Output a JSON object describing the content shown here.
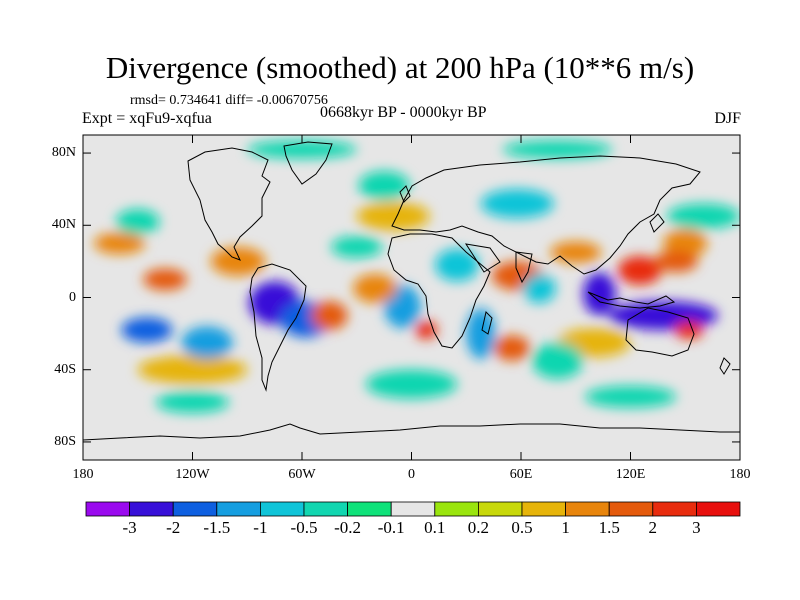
{
  "title": "Divergence (smoothed) at 200 hPa (10**6 m/s)",
  "stats_text": "rmsd= 0.734641  diff= -0.00670756",
  "experiment_text": "Expt = xqFu9-xqfua",
  "period_text": "0668kyr BP - 0000kyr BP",
  "season": "DJF",
  "chart_data": {
    "type": "heatmap",
    "title": "Divergence (smoothed) at 200 hPa (10**6 m/s)",
    "units": "10**6 m/s",
    "projection": "cylindrical equidistant",
    "x_range": [
      -180,
      180
    ],
    "y_range": [
      -90,
      90
    ],
    "y_ticks": [
      {
        "value": 80,
        "label": "80N"
      },
      {
        "value": 40,
        "label": "40N"
      },
      {
        "value": 0,
        "label": "0"
      },
      {
        "value": -40,
        "label": "40S"
      },
      {
        "value": -80,
        "label": "80S"
      }
    ],
    "x_ticks": [
      {
        "value": -180,
        "label": "180"
      },
      {
        "value": -120,
        "label": "120W"
      },
      {
        "value": -60,
        "label": "60W"
      },
      {
        "value": 0,
        "label": "0"
      },
      {
        "value": 60,
        "label": "60E"
      },
      {
        "value": 120,
        "label": "120E"
      },
      {
        "value": 180,
        "label": "180"
      }
    ],
    "colorbar": {
      "levels": [
        "-3",
        "-2",
        "-1.5",
        "-1",
        "-0.5",
        "-0.2",
        "-0.1",
        "0.1",
        "0.2",
        "0.5",
        "1",
        "1.5",
        "2",
        "3"
      ],
      "colors": [
        "#9a0aee",
        "#3810d8",
        "#0e5fe0",
        "#159ee0",
        "#10c4d8",
        "#11d6b0",
        "#0fe27a",
        "#e6e6e6",
        "#9ae50e",
        "#c8d80b",
        "#e6b40a",
        "#e8850c",
        "#e45a0c",
        "#e82c0e",
        "#e8100e"
      ]
    },
    "features": [
      {
        "lon": 138,
        "lat": -10,
        "value": -2.5,
        "rx": 30,
        "ry": 8
      },
      {
        "lon": 103,
        "lat": 2,
        "value": -3,
        "rx": 9,
        "ry": 12
      },
      {
        "lon": -75,
        "lat": -3,
        "value": -2.5,
        "rx": 14,
        "ry": 12
      },
      {
        "lon": -58,
        "lat": -12,
        "value": -2,
        "rx": 14,
        "ry": 10
      },
      {
        "lon": -145,
        "lat": -18,
        "value": -2,
        "rx": 14,
        "ry": 7
      },
      {
        "lon": -112,
        "lat": -25,
        "value": -1.5,
        "rx": 14,
        "ry": 9
      },
      {
        "lon": -5,
        "lat": -5,
        "value": -1.5,
        "rx": 10,
        "ry": 12
      },
      {
        "lon": 38,
        "lat": -20,
        "value": -1.5,
        "rx": 8,
        "ry": 14
      },
      {
        "lon": 70,
        "lat": 5,
        "value": -1,
        "rx": 9,
        "ry": 8
      },
      {
        "lon": 25,
        "lat": 18,
        "value": -1,
        "rx": 12,
        "ry": 9
      },
      {
        "lon": 58,
        "lat": 52,
        "value": -1,
        "rx": 20,
        "ry": 8
      },
      {
        "lon": 80,
        "lat": 82,
        "value": -0.5,
        "rx": 30,
        "ry": 5
      },
      {
        "lon": -60,
        "lat": 82,
        "value": -0.5,
        "rx": 30,
        "ry": 5
      },
      {
        "lon": -15,
        "lat": 62,
        "value": -0.5,
        "rx": 14,
        "ry": 8
      },
      {
        "lon": 160,
        "lat": 45,
        "value": -0.5,
        "rx": 20,
        "ry": 7
      },
      {
        "lon": -150,
        "lat": 42,
        "value": -0.5,
        "rx": 12,
        "ry": 7
      },
      {
        "lon": -30,
        "lat": 28,
        "value": -0.5,
        "rx": 14,
        "ry": 6
      },
      {
        "lon": 0,
        "lat": -48,
        "value": -0.5,
        "rx": 25,
        "ry": 8
      },
      {
        "lon": 120,
        "lat": -55,
        "value": -0.5,
        "rx": 25,
        "ry": 6
      },
      {
        "lon": -120,
        "lat": -58,
        "value": -0.5,
        "rx": 20,
        "ry": 6
      },
      {
        "lon": 80,
        "lat": -35,
        "value": -0.5,
        "rx": 14,
        "ry": 10
      },
      {
        "lon": 125,
        "lat": 15,
        "value": 2,
        "rx": 12,
        "ry": 8
      },
      {
        "lon": 8,
        "lat": -18,
        "value": 2.5,
        "rx": 6,
        "ry": 5
      },
      {
        "lon": 152,
        "lat": -18,
        "value": 2,
        "rx": 8,
        "ry": 5
      },
      {
        "lon": 58,
        "lat": 12,
        "value": 1.5,
        "rx": 14,
        "ry": 8
      },
      {
        "lon": 145,
        "lat": 20,
        "value": 1.5,
        "rx": 12,
        "ry": 6
      },
      {
        "lon": -135,
        "lat": 10,
        "value": 1.5,
        "rx": 12,
        "ry": 6
      },
      {
        "lon": -45,
        "lat": -10,
        "value": 1.5,
        "rx": 10,
        "ry": 8
      },
      {
        "lon": 55,
        "lat": -28,
        "value": 1.5,
        "rx": 10,
        "ry": 7
      },
      {
        "lon": -20,
        "lat": 5,
        "value": 1,
        "rx": 12,
        "ry": 8
      },
      {
        "lon": -95,
        "lat": 20,
        "value": 1,
        "rx": 15,
        "ry": 8
      },
      {
        "lon": -160,
        "lat": 30,
        "value": 1,
        "rx": 14,
        "ry": 6
      },
      {
        "lon": 150,
        "lat": 30,
        "value": 1,
        "rx": 12,
        "ry": 8
      },
      {
        "lon": 90,
        "lat": 25,
        "value": 1,
        "rx": 14,
        "ry": 6
      },
      {
        "lon": -120,
        "lat": -40,
        "value": 0.5,
        "rx": 30,
        "ry": 8
      },
      {
        "lon": 100,
        "lat": -25,
        "value": 0.5,
        "rx": 20,
        "ry": 8
      },
      {
        "lon": -10,
        "lat": 45,
        "value": 0.5,
        "rx": 20,
        "ry": 8
      }
    ]
  }
}
